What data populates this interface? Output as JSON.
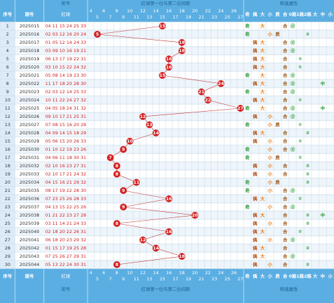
{
  "header": {
    "top": {
      "balls": "奖号",
      "grid": "红球第一位与第二位间距",
      "attrs": "和值属性"
    },
    "no": "序号",
    "issue": "期号",
    "red": "红球",
    "grid_cols": [
      4,
      5,
      6,
      7,
      8,
      9,
      10,
      11,
      12,
      13,
      14,
      15,
      16,
      17,
      18,
      19,
      20,
      21,
      22,
      23,
      24,
      25,
      26,
      27
    ],
    "attr_cols": [
      "奇",
      "偶",
      "大",
      "小",
      "质",
      "合",
      "0路",
      "1路",
      "2路",
      "大",
      "中",
      "小"
    ]
  },
  "rows": [
    {
      "no": 1,
      "issue": "2025015",
      "balls": "04 11 15 24 25 33",
      "hit": 15,
      "attrs": [
        "奇",
        null,
        "大",
        null,
        null,
        "合",
        "⓪",
        null,
        null,
        null,
        null,
        null
      ]
    },
    {
      "no": 2,
      "issue": "2025016",
      "balls": "02 03 12 16 20 24",
      "hit": 5,
      "attrs": [
        "奇",
        null,
        null,
        "小",
        "质",
        null,
        null,
        null,
        "②",
        null,
        null,
        null
      ]
    },
    {
      "no": 3,
      "issue": "2025017",
      "balls": "01 05 12 14 24 33",
      "hit": 18,
      "attrs": [
        null,
        "偶",
        "大",
        null,
        null,
        "合",
        "⓪",
        null,
        null,
        null,
        null,
        null
      ]
    },
    {
      "no": 4,
      "issue": "2025018",
      "balls": "03 09 10 16 19 21",
      "hit": 18,
      "attrs": [
        null,
        "偶",
        "大",
        null,
        null,
        "合",
        "⓪",
        null,
        null,
        null,
        null,
        null
      ]
    },
    {
      "no": 5,
      "issue": "2025019",
      "balls": "06 13 17 19 22 31",
      "hit": 16,
      "attrs": [
        null,
        "偶",
        "大",
        null,
        null,
        "合",
        null,
        "①",
        null,
        null,
        null,
        null
      ]
    },
    {
      "no": 6,
      "issue": "2025020",
      "balls": "03 10 15 22 24 32",
      "hit": 16,
      "attrs": [
        null,
        "偶",
        "大",
        null,
        null,
        "合",
        null,
        "①",
        null,
        null,
        null,
        null
      ]
    },
    {
      "no": 7,
      "issue": "2025021",
      "balls": "05 08 14 19 23 30",
      "hit": 15,
      "attrs": [
        "奇",
        null,
        "大",
        null,
        null,
        "合",
        "⓪",
        null,
        null,
        null,
        null,
        null
      ]
    },
    {
      "no": 8,
      "issue": "2025022",
      "balls": "11 17 18 20 28 30",
      "hit": 24,
      "attrs": [
        null,
        "偶",
        "大",
        null,
        null,
        "合",
        "⓪",
        null,
        null,
        null,
        "中",
        null
      ]
    },
    {
      "no": 9,
      "issue": "2025023",
      "balls": "02 03 12 14 25 33",
      "hit": 21,
      "attrs": [
        "奇",
        null,
        "大",
        null,
        null,
        "合",
        "⓪",
        null,
        null,
        null,
        null,
        null
      ]
    },
    {
      "no": 10,
      "issue": "2025024",
      "balls": "10 11 22 24 27 32",
      "hit": 22,
      "attrs": [
        null,
        "偶",
        "大",
        null,
        null,
        "合",
        null,
        "①",
        null,
        null,
        null,
        null
      ]
    },
    {
      "no": 11,
      "issue": "2025025",
      "balls": "04 05 18 24 31 32",
      "hit": 27,
      "attrs": [
        "奇",
        null,
        "大",
        null,
        null,
        "合",
        "⓪",
        null,
        null,
        null,
        "中",
        null
      ]
    },
    {
      "no": 12,
      "issue": "2025026",
      "balls": "09 10 17 21 25 31",
      "hit": 12,
      "attrs": [
        null,
        "偶",
        null,
        "小",
        null,
        "合",
        "⓪",
        null,
        null,
        null,
        null,
        null
      ]
    },
    {
      "no": 13,
      "issue": "2025027",
      "balls": "07 08 15 16 20 28",
      "hit": 13,
      "attrs": [
        "奇",
        null,
        null,
        "小",
        "质",
        null,
        null,
        "①",
        null,
        null,
        null,
        null
      ]
    },
    {
      "no": 14,
      "issue": "2025028",
      "balls": "04 09 14 15 18 29",
      "hit": 14,
      "attrs": [
        null,
        "偶",
        "大",
        null,
        null,
        "合",
        null,
        null,
        "②",
        null,
        null,
        null
      ]
    },
    {
      "no": 15,
      "issue": "2025029",
      "balls": "05 06 15 20 26 33",
      "hit": 10,
      "attrs": [
        null,
        "偶",
        null,
        "小",
        null,
        "合",
        null,
        "①",
        null,
        null,
        null,
        null
      ]
    },
    {
      "no": 16,
      "issue": "2025030",
      "balls": "01 10 12 19 23 26",
      "hit": 9,
      "attrs": [
        "奇",
        null,
        null,
        "小",
        null,
        "合",
        "⓪",
        null,
        null,
        null,
        null,
        null
      ]
    },
    {
      "no": 17,
      "issue": "2025031",
      "balls": "04 06 11 18 30 31",
      "hit": 7,
      "attrs": [
        "奇",
        null,
        null,
        "小",
        "质",
        null,
        null,
        "①",
        null,
        null,
        null,
        null
      ]
    },
    {
      "no": 18,
      "issue": "2025032",
      "balls": "02 10 16 23 27 31",
      "hit": 8,
      "attrs": [
        null,
        "偶",
        null,
        "小",
        null,
        "合",
        null,
        null,
        "②",
        null,
        null,
        null
      ]
    },
    {
      "no": 19,
      "issue": "2025033",
      "balls": "02 10 17 21 24 32",
      "hit": 8,
      "attrs": [
        null,
        "偶",
        null,
        "小",
        null,
        "合",
        null,
        null,
        "②",
        null,
        null,
        null
      ]
    },
    {
      "no": 20,
      "issue": "2025034",
      "balls": "04 15 16 21 29 32",
      "hit": 11,
      "attrs": [
        "奇",
        null,
        null,
        "小",
        "质",
        null,
        null,
        null,
        "②",
        null,
        null,
        null
      ]
    },
    {
      "no": 21,
      "issue": "2025035",
      "balls": "08 17 19 22 28 30",
      "hit": 9,
      "attrs": [
        "奇",
        null,
        null,
        "小",
        null,
        "合",
        "⓪",
        null,
        null,
        null,
        null,
        null
      ]
    },
    {
      "no": 22,
      "issue": "2025036",
      "balls": "07 23 25 26 28 33",
      "hit": 16,
      "attrs": [
        null,
        "偶",
        "大",
        null,
        null,
        "合",
        null,
        "①",
        null,
        null,
        null,
        null
      ]
    },
    {
      "no": 23,
      "issue": "2025037",
      "balls": "04 13 15 22 25 26",
      "hit": 9,
      "attrs": [
        "奇",
        null,
        null,
        "小",
        null,
        "合",
        "⓪",
        null,
        null,
        null,
        null,
        null
      ]
    },
    {
      "no": 24,
      "issue": "2025038",
      "balls": "01 21 22 23 27 28",
      "hit": 20,
      "attrs": [
        null,
        "偶",
        "大",
        null,
        null,
        "合",
        null,
        null,
        "②",
        null,
        "中",
        null
      ]
    },
    {
      "no": 25,
      "issue": "2025039",
      "balls": "03 11 14 21 24 33",
      "hit": 8,
      "attrs": [
        null,
        "偶",
        null,
        "小",
        null,
        "合",
        null,
        null,
        "②",
        null,
        null,
        null
      ]
    },
    {
      "no": 26,
      "issue": "2025040",
      "balls": "02 18 20 22 26 31",
      "hit": 16,
      "attrs": [
        null,
        "偶",
        "大",
        null,
        null,
        "合",
        null,
        "①",
        null,
        null,
        null,
        null
      ]
    },
    {
      "no": 27,
      "issue": "2025041",
      "balls": "06 18 20 23 29 32",
      "hit": 12,
      "attrs": [
        null,
        "偶",
        null,
        "小",
        null,
        "合",
        "⓪",
        null,
        null,
        null,
        null,
        null
      ]
    },
    {
      "no": 28,
      "issue": "2025042",
      "balls": "01 15 17 19 25 28",
      "hit": 14,
      "attrs": [
        null,
        "偶",
        "大",
        null,
        null,
        "合",
        null,
        null,
        "②",
        null,
        null,
        null
      ]
    },
    {
      "no": 29,
      "issue": "2025043",
      "balls": "07 25 26 27 29 31",
      "hit": 18,
      "attrs": [
        null,
        "偶",
        "大",
        null,
        null,
        "合",
        "⓪",
        null,
        null,
        null,
        null,
        null
      ]
    },
    {
      "no": 30,
      "issue": "2025044",
      "balls": "05 13 22 24 30 31",
      "hit": 8,
      "attrs": [
        null,
        "偶",
        null,
        "小",
        null,
        "合",
        null,
        null,
        "②",
        null,
        null,
        null
      ]
    }
  ]
}
